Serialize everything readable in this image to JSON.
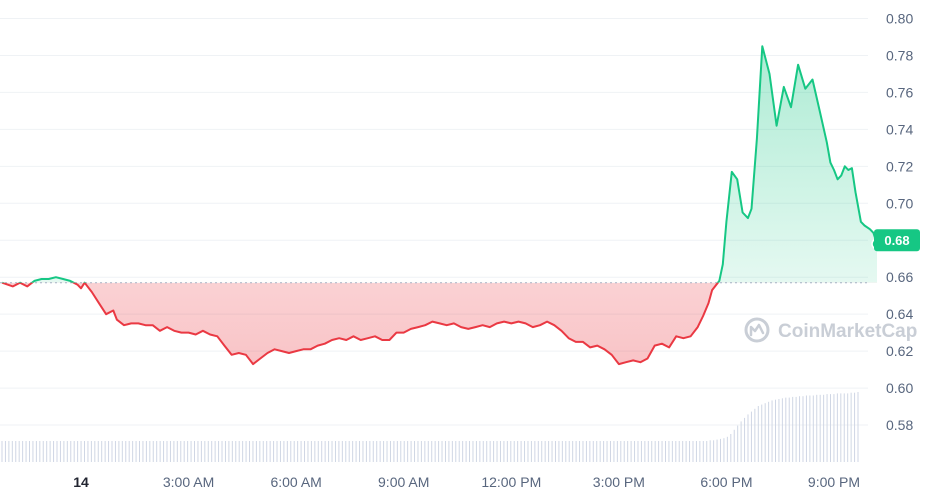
{
  "chart_data": {
    "type": "area",
    "baseline": 0.657,
    "last_price_label": "0.68",
    "watermark": "CoinMarketCap",
    "ylim": [
      0.56,
      0.81
    ],
    "y_ticks": [
      0.58,
      0.6,
      0.62,
      0.64,
      0.66,
      0.68,
      0.7,
      0.72,
      0.74,
      0.76,
      0.78,
      0.8
    ],
    "y_tick_labels": [
      "0.58",
      "0.60",
      "0.62",
      "0.64",
      "0.66",
      "0.68",
      "0.70",
      "0.72",
      "0.74",
      "0.76",
      "0.78",
      "0.80"
    ],
    "x_ticks": [
      {
        "label": "14",
        "t": 0.0
      },
      {
        "label": "3:00 AM",
        "t": 3.0
      },
      {
        "label": "6:00 AM",
        "t": 6.0
      },
      {
        "label": "9:00 AM",
        "t": 9.0
      },
      {
        "label": "12:00 PM",
        "t": 12.0
      },
      {
        "label": "3:00 PM",
        "t": 15.0
      },
      {
        "label": "6:00 PM",
        "t": 18.0
      },
      {
        "label": "9:00 PM",
        "t": 21.0
      }
    ],
    "xlim": [
      -2.2,
      21.3
    ],
    "up_color": "#16c784",
    "down_color": "#ea3943",
    "series": [
      {
        "values": [
          [
            -2.2,
            0.657
          ],
          [
            -1.9,
            0.655
          ],
          [
            -1.7,
            0.657
          ],
          [
            -1.5,
            0.655
          ],
          [
            -1.3,
            0.658
          ],
          [
            -1.1,
            0.659
          ],
          [
            -0.9,
            0.659
          ],
          [
            -0.7,
            0.66
          ],
          [
            -0.5,
            0.659
          ],
          [
            -0.3,
            0.658
          ],
          [
            -0.1,
            0.656
          ],
          [
            0.0,
            0.654
          ],
          [
            0.1,
            0.657
          ],
          [
            0.3,
            0.652
          ],
          [
            0.5,
            0.646
          ],
          [
            0.7,
            0.64
          ],
          [
            0.9,
            0.642
          ],
          [
            1.0,
            0.637
          ],
          [
            1.2,
            0.634
          ],
          [
            1.4,
            0.635
          ],
          [
            1.6,
            0.635
          ],
          [
            1.8,
            0.634
          ],
          [
            2.0,
            0.634
          ],
          [
            2.2,
            0.631
          ],
          [
            2.4,
            0.633
          ],
          [
            2.6,
            0.631
          ],
          [
            2.8,
            0.63
          ],
          [
            3.0,
            0.63
          ],
          [
            3.2,
            0.629
          ],
          [
            3.4,
            0.631
          ],
          [
            3.6,
            0.629
          ],
          [
            3.8,
            0.628
          ],
          [
            4.0,
            0.623
          ],
          [
            4.2,
            0.618
          ],
          [
            4.4,
            0.619
          ],
          [
            4.6,
            0.618
          ],
          [
            4.8,
            0.613
          ],
          [
            5.0,
            0.616
          ],
          [
            5.2,
            0.619
          ],
          [
            5.4,
            0.621
          ],
          [
            5.6,
            0.62
          ],
          [
            5.8,
            0.619
          ],
          [
            6.0,
            0.62
          ],
          [
            6.2,
            0.621
          ],
          [
            6.4,
            0.621
          ],
          [
            6.6,
            0.623
          ],
          [
            6.8,
            0.624
          ],
          [
            7.0,
            0.626
          ],
          [
            7.2,
            0.627
          ],
          [
            7.4,
            0.626
          ],
          [
            7.6,
            0.628
          ],
          [
            7.8,
            0.626
          ],
          [
            8.0,
            0.627
          ],
          [
            8.2,
            0.628
          ],
          [
            8.4,
            0.626
          ],
          [
            8.6,
            0.626
          ],
          [
            8.8,
            0.63
          ],
          [
            9.0,
            0.63
          ],
          [
            9.2,
            0.632
          ],
          [
            9.4,
            0.633
          ],
          [
            9.6,
            0.634
          ],
          [
            9.8,
            0.636
          ],
          [
            10.0,
            0.635
          ],
          [
            10.2,
            0.634
          ],
          [
            10.4,
            0.635
          ],
          [
            10.6,
            0.633
          ],
          [
            10.8,
            0.632
          ],
          [
            11.0,
            0.633
          ],
          [
            11.2,
            0.634
          ],
          [
            11.4,
            0.633
          ],
          [
            11.6,
            0.635
          ],
          [
            11.8,
            0.636
          ],
          [
            12.0,
            0.635
          ],
          [
            12.2,
            0.636
          ],
          [
            12.4,
            0.635
          ],
          [
            12.6,
            0.633
          ],
          [
            12.8,
            0.634
          ],
          [
            13.0,
            0.636
          ],
          [
            13.2,
            0.634
          ],
          [
            13.4,
            0.631
          ],
          [
            13.6,
            0.627
          ],
          [
            13.8,
            0.625
          ],
          [
            14.0,
            0.625
          ],
          [
            14.2,
            0.622
          ],
          [
            14.4,
            0.623
          ],
          [
            14.6,
            0.621
          ],
          [
            14.8,
            0.618
          ],
          [
            15.0,
            0.613
          ],
          [
            15.2,
            0.614
          ],
          [
            15.4,
            0.615
          ],
          [
            15.6,
            0.614
          ],
          [
            15.8,
            0.616
          ],
          [
            16.0,
            0.623
          ],
          [
            16.2,
            0.624
          ],
          [
            16.4,
            0.622
          ],
          [
            16.6,
            0.628
          ],
          [
            16.8,
            0.627
          ],
          [
            17.0,
            0.628
          ],
          [
            17.2,
            0.633
          ],
          [
            17.35,
            0.639
          ],
          [
            17.5,
            0.646
          ],
          [
            17.6,
            0.653
          ],
          [
            17.8,
            0.658
          ],
          [
            17.9,
            0.667
          ],
          [
            18.0,
            0.69
          ],
          [
            18.15,
            0.717
          ],
          [
            18.3,
            0.713
          ],
          [
            18.45,
            0.695
          ],
          [
            18.6,
            0.692
          ],
          [
            18.7,
            0.697
          ],
          [
            18.85,
            0.735
          ],
          [
            19.0,
            0.785
          ],
          [
            19.2,
            0.77
          ],
          [
            19.4,
            0.742
          ],
          [
            19.6,
            0.763
          ],
          [
            19.8,
            0.752
          ],
          [
            20.0,
            0.775
          ],
          [
            20.2,
            0.762
          ],
          [
            20.4,
            0.767
          ],
          [
            20.6,
            0.75
          ],
          [
            20.8,
            0.733
          ],
          [
            20.9,
            0.722
          ],
          [
            21.0,
            0.718
          ],
          [
            21.1,
            0.713
          ],
          [
            21.2,
            0.715
          ],
          [
            21.3,
            0.72
          ],
          [
            21.4,
            0.718
          ],
          [
            21.5,
            0.719
          ],
          [
            21.6,
            0.706
          ],
          [
            21.75,
            0.69
          ],
          [
            21.85,
            0.688
          ],
          [
            22.0,
            0.686
          ],
          [
            22.1,
            0.684
          ],
          [
            22.2,
            0.678
          ]
        ]
      }
    ],
    "volume": [
      0.3,
      0.3,
      0.3,
      0.3,
      0.3,
      0.3,
      0.3,
      0.3,
      0.3,
      0.3,
      0.3,
      0.3,
      0.3,
      0.3,
      0.3,
      0.3,
      0.3,
      0.3,
      0.3,
      0.3,
      0.3,
      0.3,
      0.3,
      0.3,
      0.3,
      0.3,
      0.3,
      0.3,
      0.3,
      0.3,
      0.3,
      0.3,
      0.3,
      0.3,
      0.3,
      0.3,
      0.3,
      0.3,
      0.3,
      0.3,
      0.3,
      0.3,
      0.3,
      0.3,
      0.3,
      0.3,
      0.3,
      0.3,
      0.3,
      0.3,
      0.3,
      0.3,
      0.3,
      0.3,
      0.3,
      0.3,
      0.3,
      0.3,
      0.3,
      0.3,
      0.3,
      0.3,
      0.3,
      0.3,
      0.3,
      0.3,
      0.3,
      0.3,
      0.3,
      0.3,
      0.3,
      0.3,
      0.3,
      0.3,
      0.3,
      0.3,
      0.3,
      0.3,
      0.3,
      0.3,
      0.3,
      0.3,
      0.3,
      0.3,
      0.3,
      0.3,
      0.3,
      0.3,
      0.3,
      0.3,
      0.3,
      0.3,
      0.3,
      0.3,
      0.3,
      0.3,
      0.3,
      0.3,
      0.3,
      0.3,
      0.3,
      0.3,
      0.3,
      0.3,
      0.3,
      0.3,
      0.3,
      0.3,
      0.3,
      0.3,
      0.3,
      0.3,
      0.3,
      0.3,
      0.3,
      0.3,
      0.3,
      0.3,
      0.3,
      0.3,
      0.3,
      0.3,
      0.3,
      0.3,
      0.3,
      0.3,
      0.3,
      0.3,
      0.3,
      0.3,
      0.3,
      0.3,
      0.3,
      0.3,
      0.3,
      0.3,
      0.3,
      0.3,
      0.3,
      0.3,
      0.3,
      0.3,
      0.3,
      0.3,
      0.3,
      0.3,
      0.3,
      0.3,
      0.3,
      0.3,
      0.3,
      0.3,
      0.3,
      0.3,
      0.3,
      0.3,
      0.3,
      0.3,
      0.3,
      0.3,
      0.3,
      0.3,
      0.3,
      0.3,
      0.3,
      0.3,
      0.3,
      0.3,
      0.3,
      0.3,
      0.3,
      0.3,
      0.3,
      0.3,
      0.3,
      0.3,
      0.3,
      0.3,
      0.3,
      0.3,
      0.3,
      0.3,
      0.3,
      0.3,
      0.3,
      0.3,
      0.3,
      0.3,
      0.3,
      0.3,
      0.3,
      0.3,
      0.3,
      0.3,
      0.3,
      0.3,
      0.3,
      0.3,
      0.3,
      0.3,
      0.3,
      0.3,
      0.3,
      0.3,
      0.3,
      0.3,
      0.31,
      0.31,
      0.32,
      0.33,
      0.34,
      0.36,
      0.4,
      0.46,
      0.52,
      0.58,
      0.63,
      0.68,
      0.72,
      0.76,
      0.8,
      0.82,
      0.84,
      0.86,
      0.88,
      0.89,
      0.9,
      0.91,
      0.92,
      0.92,
      0.93,
      0.93,
      0.94,
      0.94,
      0.95,
      0.95,
      0.95,
      0.96,
      0.96,
      0.96,
      0.97,
      0.97,
      0.97,
      0.98,
      0.98,
      0.98,
      0.98,
      0.99,
      0.99,
      1.0
    ]
  }
}
